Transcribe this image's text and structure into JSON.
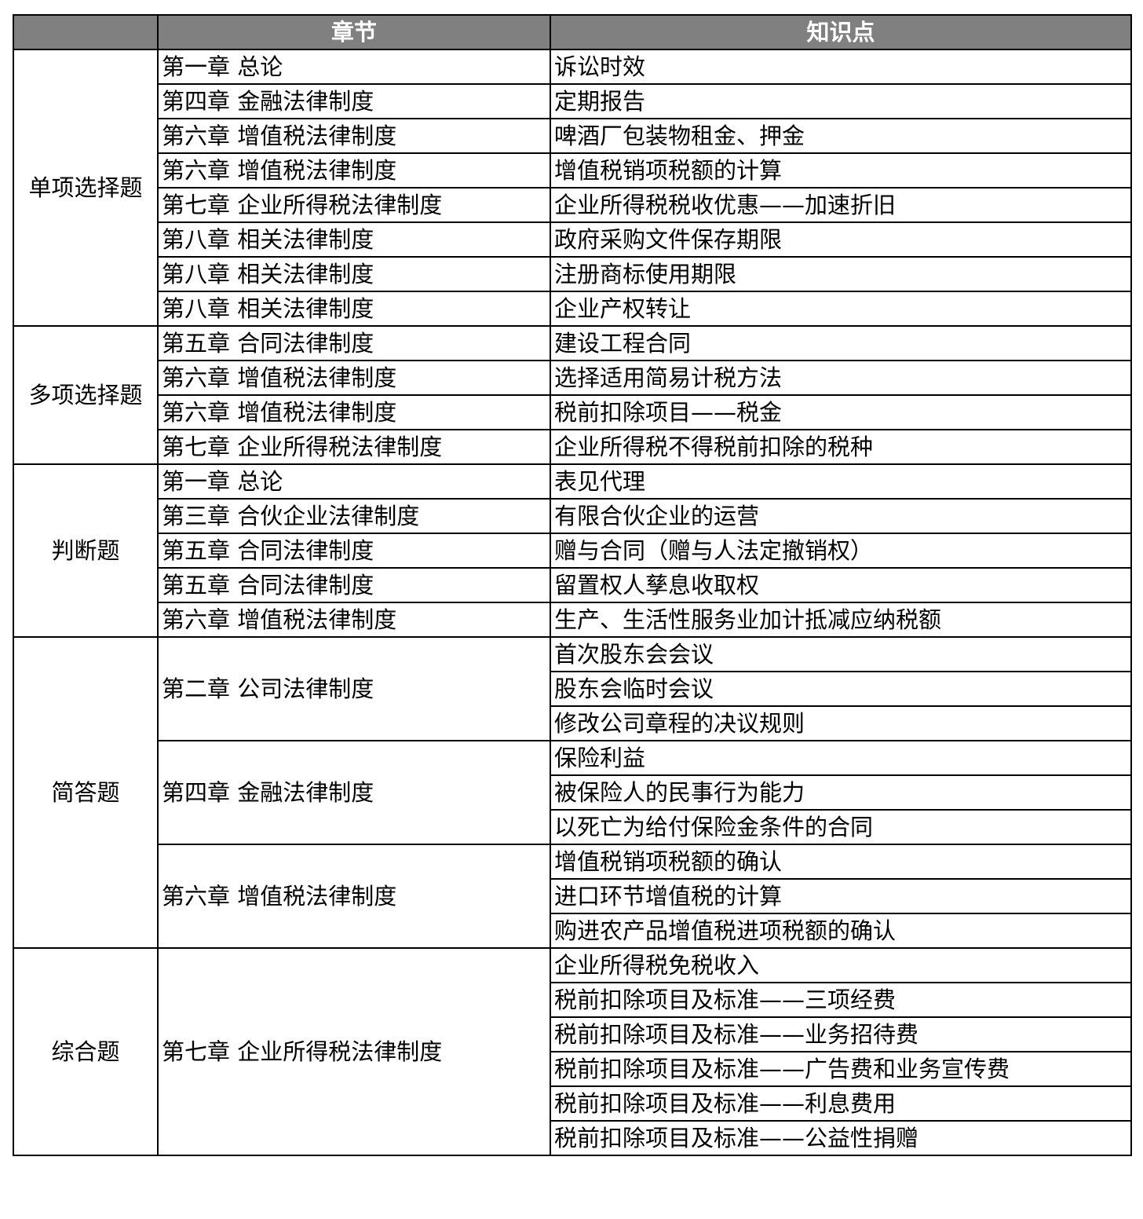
{
  "header": {
    "col1": "",
    "col2": "章节",
    "col3": "知识点"
  },
  "sections": [
    {
      "type": "单项选择题",
      "chapters": [
        {
          "chapter": "第一章 总论",
          "points": [
            "诉讼时效"
          ]
        },
        {
          "chapter": "第四章  金融法律制度",
          "points": [
            "定期报告"
          ]
        },
        {
          "chapter": "第六章  增值税法律制度",
          "points": [
            "啤酒厂包装物租金、押金"
          ]
        },
        {
          "chapter": "第六章  增值税法律制度",
          "points": [
            "增值税销项税额的计算"
          ]
        },
        {
          "chapter": "第七章  企业所得税法律制度",
          "points": [
            "企业所得税税收优惠——加速折旧"
          ]
        },
        {
          "chapter": "第八章  相关法律制度",
          "points": [
            "政府采购文件保存期限"
          ]
        },
        {
          "chapter": "第八章  相关法律制度",
          "points": [
            "注册商标使用期限"
          ]
        },
        {
          "chapter": "第八章  相关法律制度",
          "points": [
            "企业产权转让"
          ]
        }
      ]
    },
    {
      "type": "多项选择题",
      "chapters": [
        {
          "chapter": "第五章 合同法律制度",
          "points": [
            "建设工程合同"
          ]
        },
        {
          "chapter": "第六章  增值税法律制度",
          "points": [
            "选择适用简易计税方法"
          ]
        },
        {
          "chapter": "第六章  增值税法律制度",
          "points": [
            "税前扣除项目——税金"
          ]
        },
        {
          "chapter": "第七章  企业所得税法律制度",
          "points": [
            "企业所得税不得税前扣除的税种"
          ]
        }
      ]
    },
    {
      "type": "判断题",
      "chapters": [
        {
          "chapter": "第一章 总论",
          "points": [
            "表见代理"
          ]
        },
        {
          "chapter": "第三章  合伙企业法律制度",
          "points": [
            "有限合伙企业的运营"
          ]
        },
        {
          "chapter": "第五章 合同法律制度",
          "points": [
            "赠与合同（赠与人法定撤销权）"
          ]
        },
        {
          "chapter": "第五章 合同法律制度",
          "points": [
            "留置权人孳息收取权"
          ]
        },
        {
          "chapter": "第六章  增值税法律制度",
          "points": [
            "生产、生活性服务业加计抵减应纳税额"
          ]
        }
      ]
    },
    {
      "type": "简答题",
      "chapters": [
        {
          "chapter": "第二章  公司法律制度",
          "points": [
            "首次股东会会议",
            "股东会临时会议",
            "修改公司章程的决议规则"
          ]
        },
        {
          "chapter": "第四章  金融法律制度",
          "points": [
            "保险利益",
            "被保险人的民事行为能力",
            "以死亡为给付保险金条件的合同"
          ]
        },
        {
          "chapter": "第六章  增值税法律制度",
          "points": [
            "增值税销项税额的确认",
            "进口环节增值税的计算",
            "购进农产品增值税进项税额的确认"
          ]
        }
      ]
    },
    {
      "type": "综合题",
      "chapters": [
        {
          "chapter": "第七章  企业所得税法律制度",
          "points": [
            "企业所得税免税收入",
            "税前扣除项目及标准——三项经费",
            "税前扣除项目及标准——业务招待费",
            "税前扣除项目及标准——广告费和业务宣传费",
            "税前扣除项目及标准——利息费用",
            "税前扣除项目及标准——公益性捐赠"
          ]
        }
      ]
    }
  ]
}
